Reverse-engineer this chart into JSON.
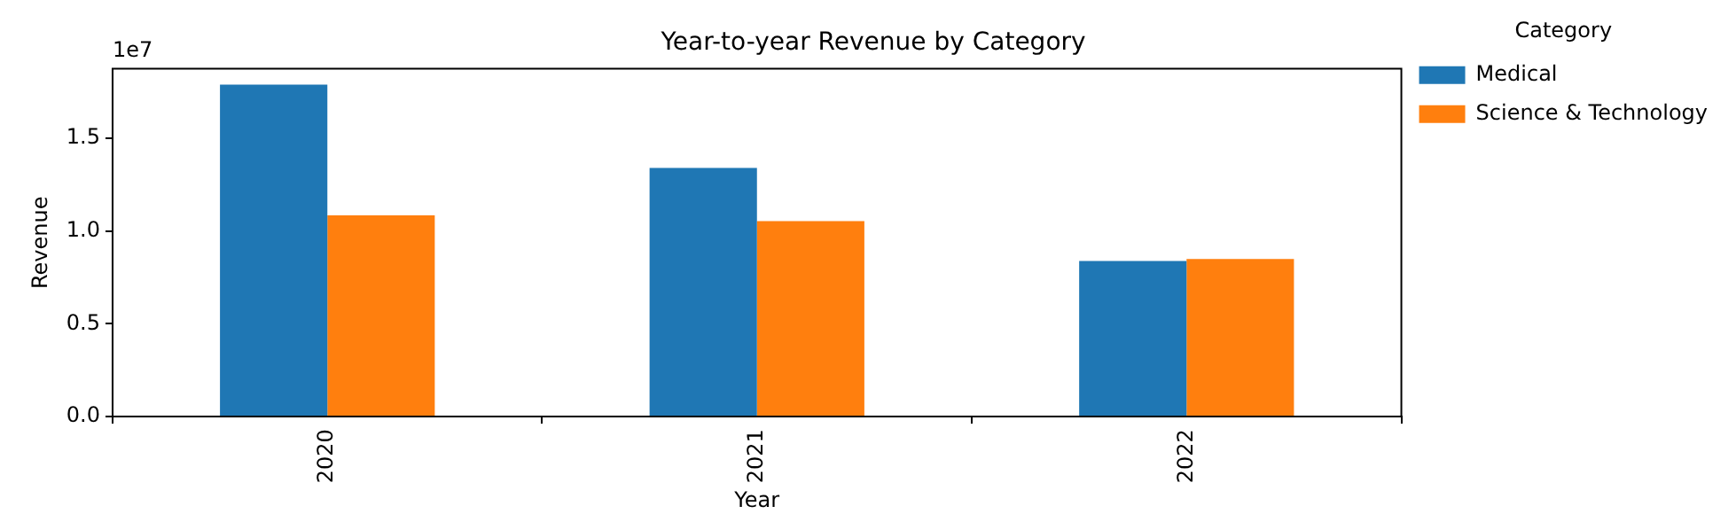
{
  "chart_data": {
    "type": "bar",
    "title": "Year-to-year Revenue by Category",
    "xlabel": "Year",
    "ylabel": "Revenue",
    "legend_title": "Category",
    "categories": [
      "2020",
      "2021",
      "2022"
    ],
    "series": [
      {
        "name": "Medical",
        "color": "#1f77b4",
        "values": [
          1.789,
          1.34,
          0.838
        ]
      },
      {
        "name": "Science & Technology",
        "color": "#ff7f0e",
        "values": [
          1.084,
          1.053,
          0.849
        ]
      }
    ],
    "ylim": [
      0,
      1.874
    ],
    "yticks": [
      {
        "value": 0,
        "label": "0.0"
      },
      {
        "value": 0.5,
        "label": "0.5"
      },
      {
        "value": 1,
        "label": "1.0"
      },
      {
        "value": 1.5,
        "label": "1.5"
      }
    ],
    "annotations": [
      "1e7"
    ],
    "grid": false,
    "legend": "top right"
  }
}
